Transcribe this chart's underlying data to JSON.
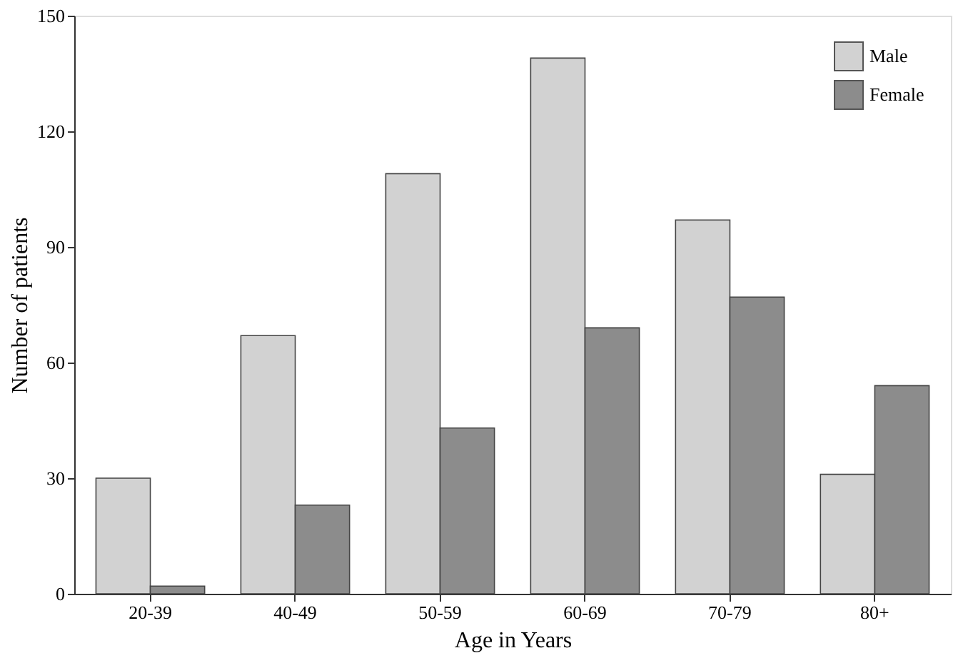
{
  "chart_data": {
    "type": "bar",
    "xlabel": "Age in Years",
    "ylabel": "Number of patients",
    "categories": [
      "20-39",
      "40-49",
      "50-59",
      "60-69",
      "70-79",
      "80+"
    ],
    "series": [
      {
        "name": "Male",
        "color": "#d2d2d2",
        "values": [
          30,
          67,
          109,
          139,
          97,
          31
        ]
      },
      {
        "name": "Female",
        "color": "#8c8c8c",
        "values": [
          2,
          23,
          43,
          69,
          77,
          54
        ]
      }
    ],
    "ylim": [
      0,
      150
    ],
    "yticks": [
      0,
      30,
      60,
      90,
      120,
      150
    ],
    "grid": false,
    "legend": "top right"
  }
}
